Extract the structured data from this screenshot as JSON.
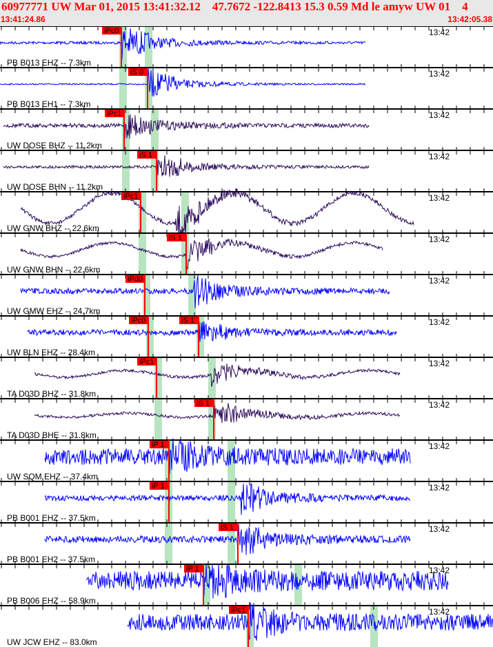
{
  "header": {
    "title": "60977771 UW Mar 01, 2015 13:41:32.12    47.7672 -122.8413 15.3 0.59 Md le amyw UW 01    4",
    "time_start": "13:41:24.86",
    "time_end": "13:42:05.38"
  },
  "colors": {
    "header_text": "#ff0000",
    "pick": "#ff0000",
    "trace_blue": "#0000ff",
    "trace_purple": "#2a0a5a",
    "pick_window": "#b8e4bf"
  },
  "time_mark": "13:42",
  "traces": [
    {
      "station": "PB B013 EHZ -- 7.3km",
      "picks": [
        "iPc0"
      ],
      "color": "blue"
    },
    {
      "station": "PB B013 EH1 -- 7.3km",
      "picks": [
        "iS 0"
      ],
      "color": "blue"
    },
    {
      "station": "UW DOSE BHZ -- 11.2km",
      "picks": [
        "iPc1"
      ],
      "color": "purple"
    },
    {
      "station": "UW DOSE BHN -- 11.2km",
      "picks": [
        "iS 1"
      ],
      "color": "purple"
    },
    {
      "station": "UW GNW BHZ -- 22.6km",
      "picks": [
        "iPc1"
      ],
      "color": "purple"
    },
    {
      "station": "UW GNW BHN -- 22.6km",
      "picks": [
        "iS 1"
      ],
      "color": "purple"
    },
    {
      "station": "UW GMW EHZ -- 24.7km",
      "picks": [
        "iPd0"
      ],
      "color": "blue"
    },
    {
      "station": "UW BLN EHZ -- 28.4km",
      "picks": [
        "iPc0",
        "iS 1"
      ],
      "color": "blue"
    },
    {
      "station": "TA D03D BHZ -- 31.8km",
      "picks": [
        "iPc1"
      ],
      "color": "purple"
    },
    {
      "station": "TA D03D BHE -- 31.8km",
      "picks": [
        "iS 1"
      ],
      "color": "purple"
    },
    {
      "station": "UW SQM EHZ -- 37.4km",
      "picks": [
        "iP 1"
      ],
      "color": "blue"
    },
    {
      "station": "PB B001 EHZ -- 37.5km",
      "picks": [
        "iP 1"
      ],
      "color": "blue"
    },
    {
      "station": "PB B001 EH2 -- 37.5km",
      "picks": [
        "iS 1"
      ],
      "color": "blue"
    },
    {
      "station": "PB B006 EHZ -- 58.9km",
      "picks": [
        "iP 1"
      ],
      "color": "blue"
    },
    {
      "station": "UW JCW EHZ -- 83.0km",
      "picks": [
        "iPc1"
      ],
      "color": "blue"
    }
  ]
}
